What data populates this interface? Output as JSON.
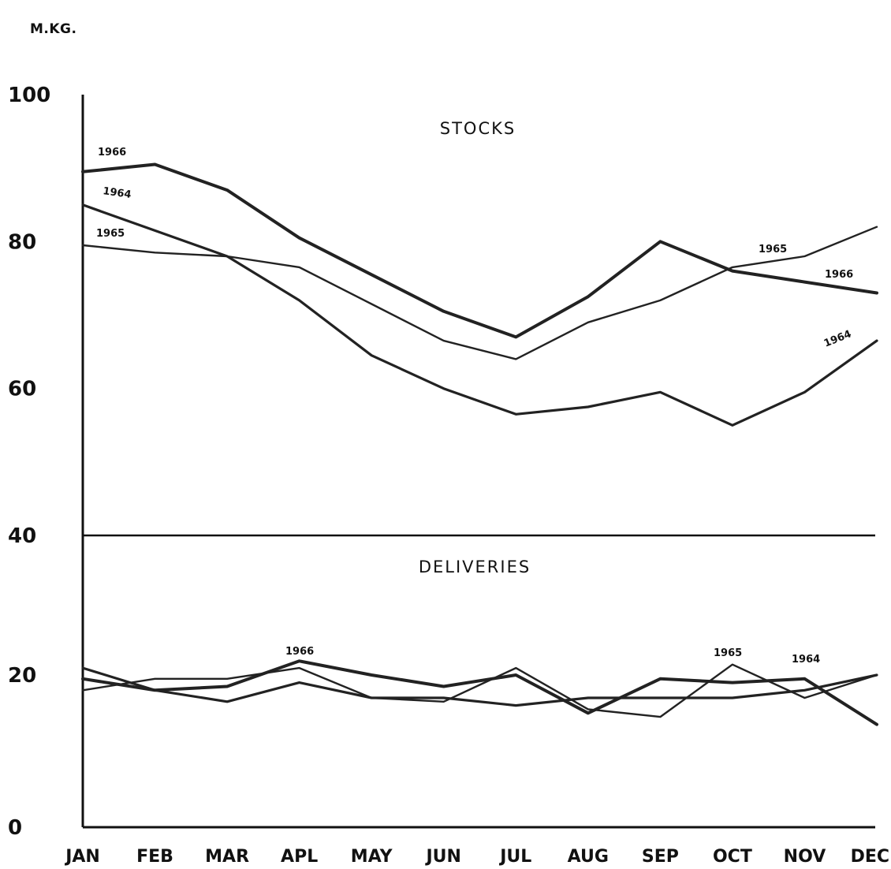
{
  "chart_data": {
    "type": "line",
    "unit_label": "M.KG.",
    "y_tick_labels": [
      "0",
      "20",
      "40",
      "60",
      "80",
      "100"
    ],
    "y_ticks": [
      0,
      20,
      40,
      60,
      80,
      100
    ],
    "ylim": [
      0,
      100
    ],
    "categories": [
      "JAN",
      "FEB",
      "MAR",
      "APL",
      "MAY",
      "JUN",
      "JUL",
      "AUG",
      "SEP",
      "OCT",
      "NOV",
      "DEC"
    ],
    "grid": false,
    "divider_at": 40,
    "panels": [
      {
        "title": "STOCKS",
        "series": [
          {
            "name": "1966",
            "values": [
              89.5,
              90.5,
              87,
              80.5,
              75.5,
              70.5,
              67,
              72.5,
              80,
              76,
              74.5,
              73
            ]
          },
          {
            "name": "1964",
            "values": [
              85,
              81.5,
              78,
              72,
              64.5,
              60,
              56.5,
              57.5,
              59.5,
              55,
              59.5,
              66.5
            ]
          },
          {
            "name": "1965",
            "values": [
              79.5,
              78.5,
              78,
              76.5,
              71.5,
              66.5,
              64,
              69,
              72,
              76.5,
              78,
              82
            ]
          }
        ]
      },
      {
        "title": "DELIVERIES",
        "series": [
          {
            "name": "1966",
            "values": [
              19.5,
              18,
              18.5,
              22,
              20,
              18.5,
              20,
              15,
              19.5,
              19,
              19.5,
              13.5
            ]
          },
          {
            "name": "1965",
            "values": [
              18,
              19.5,
              19.5,
              21,
              17,
              16.5,
              21,
              15.5,
              14.5,
              21.5,
              17,
              20
            ]
          },
          {
            "name": "1964",
            "values": [
              21,
              18,
              16.5,
              19,
              17,
              17,
              16,
              17,
              17,
              17,
              18,
              20
            ]
          }
        ]
      }
    ],
    "annotations": [
      {
        "text": "1966",
        "series": "STOCKS 1966"
      },
      {
        "text": "1964",
        "series": "STOCKS 1964"
      },
      {
        "text": "1965",
        "series": "STOCKS 1965"
      },
      {
        "text": "1965",
        "series": "STOCKS 1965"
      },
      {
        "text": "1966",
        "series": "STOCKS 1966"
      },
      {
        "text": "1964",
        "series": "STOCKS 1964"
      },
      {
        "text": "1966",
        "series": "DELIVERIES 1966"
      },
      {
        "text": "1965",
        "series": "DELIVERIES 1965"
      },
      {
        "text": "1964",
        "series": "DELIVERIES 1964"
      }
    ]
  }
}
